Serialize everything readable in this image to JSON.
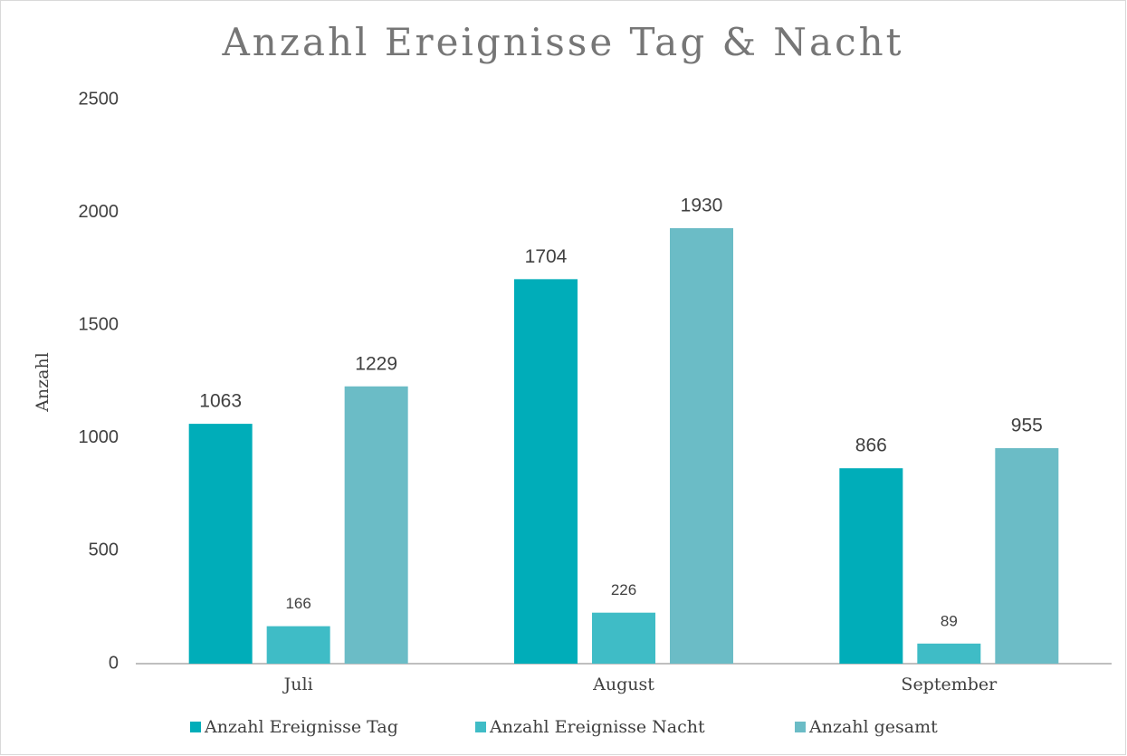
{
  "chart_data": {
    "type": "bar",
    "title": "Anzahl Ereignisse Tag & Nacht",
    "y_label": "Anzahl",
    "categories": [
      "Juli",
      "August",
      "September"
    ],
    "series": [
      {
        "name": "Anzahl Ereignisse Tag",
        "color": "#00adb9",
        "values": [
          1063,
          1704,
          866
        ]
      },
      {
        "name": "Anzahl Ereignisse Nacht",
        "color": "#3fbcc6",
        "values": [
          166,
          226,
          89
        ]
      },
      {
        "name": "Anzahl gesamt",
        "color": "#6bbcc6",
        "values": [
          1229,
          1930,
          955
        ]
      }
    ],
    "ylim": [
      0,
      2500
    ],
    "yticks": [
      0,
      500,
      1000,
      1500,
      2000,
      2500
    ],
    "grid": false,
    "legend": "bottom"
  }
}
